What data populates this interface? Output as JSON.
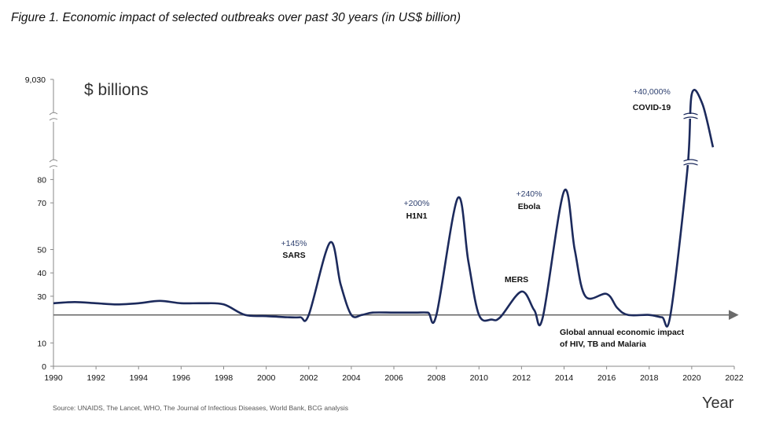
{
  "figure_title": "Figure 1. Economic impact of selected outbreaks over past 30 years (in US$ billion)",
  "source_note": "Source: UNAIDS, The Lancet, WHO, The Journal of Infectious Diseases, World Bank, BCG analysis",
  "colors": {
    "line": "#1c2a5c",
    "baseline": "#6b6b6b",
    "axis": "#8a8a8a",
    "text": "#111111",
    "pct": "#2f4170"
  },
  "chart_data": {
    "type": "line",
    "title": "Economic impact of selected outbreaks over past 30 years",
    "xlabel": "Year",
    "ylabel": "$ billions",
    "xlim": [
      1990,
      2022
    ],
    "x_ticks": [
      1990,
      1992,
      1994,
      1996,
      1998,
      2000,
      2002,
      2004,
      2006,
      2008,
      2010,
      2012,
      2014,
      2016,
      2018,
      2020,
      2022
    ],
    "y_ticks": [
      0,
      10,
      30,
      40,
      50,
      70,
      80
    ],
    "y_top_label": "9,030",
    "y_axis_break": true,
    "baseline": {
      "value": 22,
      "label_line1": "Global annual economic impact",
      "label_line2": "of HIV, TB and Malaria"
    },
    "series": [
      {
        "name": "Economic impact",
        "x": [
          1990,
          1991,
          1992,
          1993,
          1994,
          1995,
          1996,
          1997,
          1998,
          1999,
          2000,
          2001,
          2001.6,
          2002,
          2003,
          2003.5,
          2004,
          2004.5,
          2005,
          2006,
          2007,
          2007.6,
          2008,
          2009,
          2009.5,
          2010,
          2010.6,
          2011,
          2012,
          2012.6,
          2013,
          2014,
          2014.5,
          2015,
          2016,
          2016.5,
          2017,
          2018,
          2018.6,
          2019,
          2019.8,
          2020,
          2020.5,
          2021
        ],
        "y": [
          27,
          27.5,
          27,
          26.5,
          27,
          28,
          27,
          27,
          26.5,
          22,
          21.5,
          21,
          21,
          22,
          53,
          35,
          22,
          22,
          23,
          23,
          23,
          23,
          22,
          72,
          45,
          22,
          20,
          21,
          32,
          24,
          21,
          75,
          50,
          30,
          31,
          25,
          22,
          22,
          21,
          22,
          8000,
          9030,
          8900,
          8300
        ]
      }
    ],
    "annotations": [
      {
        "pct": "+145%",
        "event": "SARS",
        "year": 2003
      },
      {
        "pct": "+200%",
        "event": "H1N1",
        "year": 2009
      },
      {
        "pct": "",
        "event": "MERS",
        "year": 2012
      },
      {
        "pct": "+240%",
        "event": "Ebola",
        "year": 2014
      },
      {
        "pct": "+40,000%",
        "event": "COVID-19",
        "year": 2020
      }
    ]
  }
}
